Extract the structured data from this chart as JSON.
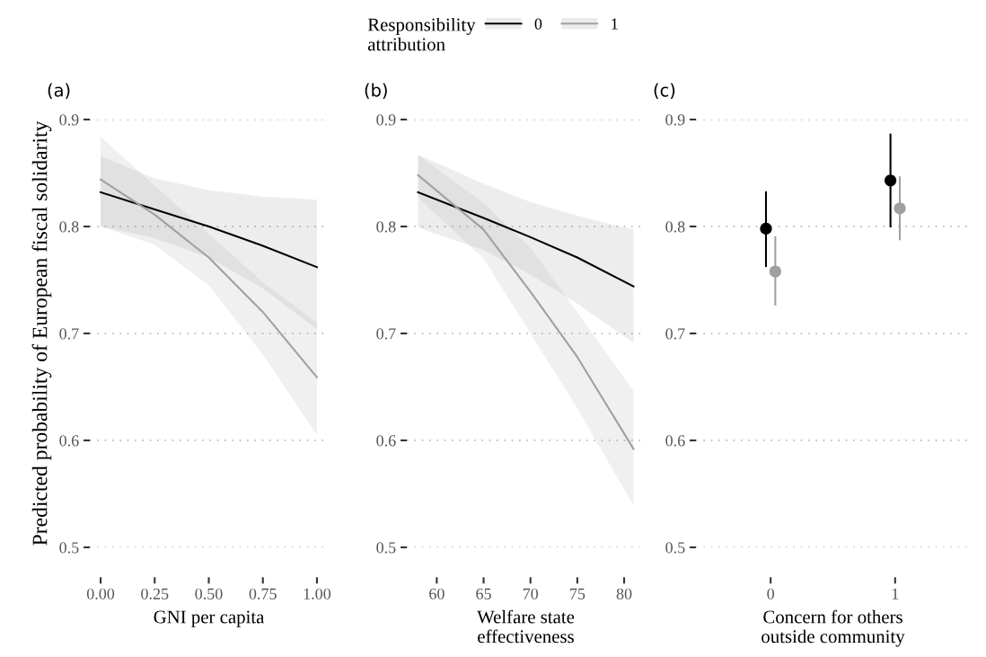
{
  "chart_data": [
    {
      "type": "line",
      "title": "(a)",
      "xlabel": "GNI per capita",
      "ylabel": "Predicted probability of European fiscal solidarity",
      "legend": "top",
      "legend_title": "Responsibility\nattribution",
      "grid": "y",
      "line_style": "solid",
      "marker": "none",
      "xlim": [
        -0.05,
        1.05
      ],
      "xticks": [
        {
          "value": 0,
          "label": "0.00"
        },
        {
          "value": 0.25,
          "label": "0.25"
        },
        {
          "value": 0.5,
          "label": "0.50"
        },
        {
          "value": 0.75,
          "label": "0.75"
        },
        {
          "value": 1,
          "label": "1.00"
        }
      ],
      "ylim": [
        0.5,
        0.9
      ],
      "yticks": [
        0.5,
        0.6,
        0.7,
        0.8,
        0.9
      ],
      "x": [
        0,
        0.25,
        0.5,
        0.75,
        1
      ],
      "series": [
        {
          "name": "0",
          "color": "#000000",
          "values": [
            0.832,
            0.816,
            0.8,
            0.782,
            0.762
          ],
          "lower": [
            0.8,
            0.789,
            0.771,
            0.742,
            0.704
          ],
          "upper": [
            0.866,
            0.845,
            0.834,
            0.828,
            0.825
          ]
        },
        {
          "name": "1",
          "color": "#a0a0a0",
          "values": [
            0.844,
            0.811,
            0.771,
            0.72,
            0.659
          ],
          "lower": [
            0.8,
            0.783,
            0.745,
            0.68,
            0.605
          ],
          "upper": [
            0.884,
            0.838,
            0.793,
            0.748,
            0.71
          ]
        }
      ]
    },
    {
      "type": "line",
      "title": "(b)",
      "xlabel": "Welfare state\neffectiveness",
      "grid": "y",
      "line_style": "solid",
      "marker": "none",
      "xlim": [
        56.8,
        82.2
      ],
      "xticks": [
        60,
        65,
        70,
        75,
        80
      ],
      "ylim": [
        0.5,
        0.9
      ],
      "yticks": [
        0.5,
        0.6,
        0.7,
        0.8,
        0.9
      ],
      "x": [
        58,
        65,
        70,
        75,
        81
      ],
      "series": [
        {
          "color": "#000000",
          "values": [
            0.832,
            0.808,
            0.79,
            0.771,
            0.744
          ],
          "lower": [
            0.799,
            0.778,
            0.755,
            0.728,
            0.691
          ],
          "upper": [
            0.867,
            0.84,
            0.823,
            0.81,
            0.797
          ]
        },
        {
          "color": "#a0a0a0",
          "values": [
            0.848,
            0.797,
            0.739,
            0.678,
            0.592
          ],
          "lower": [
            0.827,
            0.77,
            0.7,
            0.63,
            0.539
          ],
          "upper": [
            0.867,
            0.822,
            0.78,
            0.72,
            0.646
          ]
        }
      ]
    },
    {
      "type": "scatter",
      "title": "(c)",
      "xlabel": "Concern for others\noutside community",
      "grid": "y",
      "marker": "circle",
      "ylim": [
        0.5,
        0.9
      ],
      "yticks": [
        0.5,
        0.6,
        0.7,
        0.8,
        0.9
      ],
      "categories": [
        "0",
        "1"
      ],
      "series": [
        {
          "color": "#000000",
          "values": [
            0.798,
            0.843
          ],
          "errors": [
            [
              0.763,
              0.832
            ],
            [
              0.8,
              0.886
            ]
          ]
        },
        {
          "color": "#a0a0a0",
          "values": [
            0.758,
            0.817
          ],
          "errors": [
            [
              0.727,
              0.79
            ],
            [
              0.788,
              0.846
            ]
          ]
        }
      ]
    }
  ]
}
